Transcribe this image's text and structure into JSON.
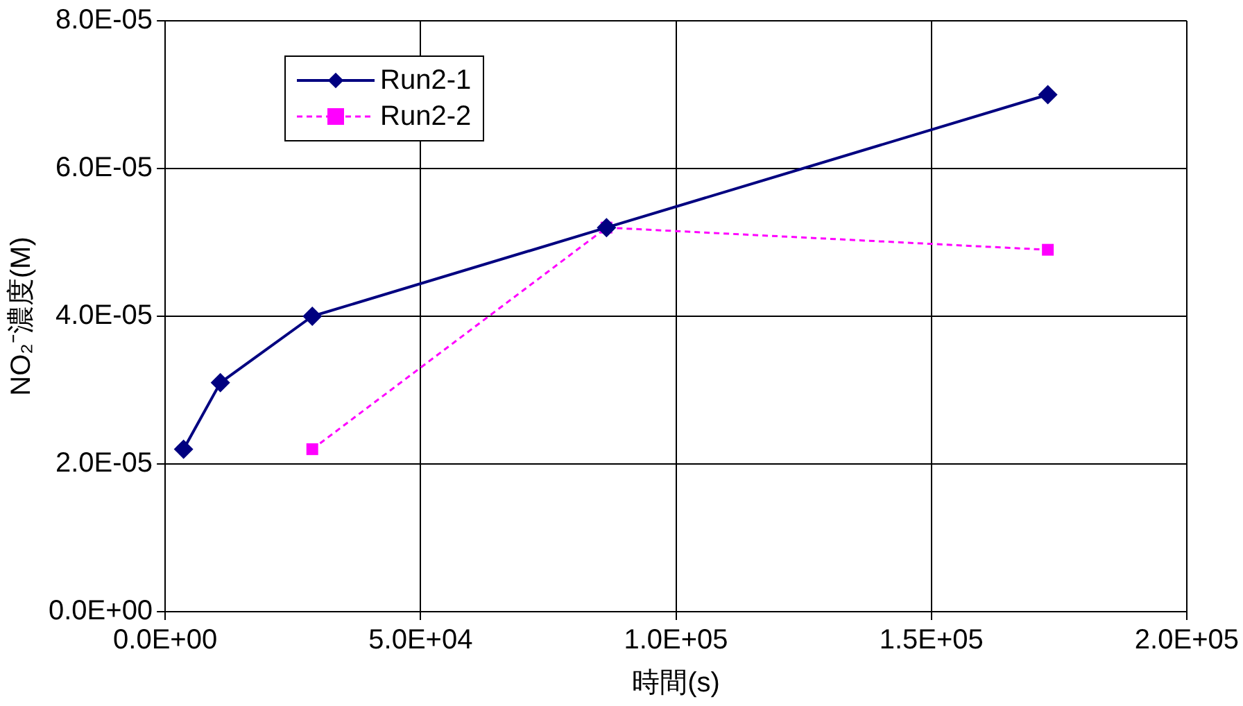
{
  "chart_data": {
    "type": "line",
    "xlabel": "時間(s)",
    "ylabel": "NO₂⁻濃度(M)",
    "xlim": [
      0,
      200000
    ],
    "xticks": [
      {
        "value": 0,
        "label": "0.0E+00"
      },
      {
        "value": 50000,
        "label": "5.0E+04"
      },
      {
        "value": 100000,
        "label": "1.0E+05"
      },
      {
        "value": 150000,
        "label": "1.5E+05"
      },
      {
        "value": 200000,
        "label": "2.0E+05"
      }
    ],
    "ylim": [
      0,
      8e-05
    ],
    "yticks": [
      {
        "value": 0,
        "label": "0.0E+00"
      },
      {
        "value": 2e-05,
        "label": "2.0E-05"
      },
      {
        "value": 4e-05,
        "label": "4.0E-05"
      },
      {
        "value": 6e-05,
        "label": "6.0E-05"
      },
      {
        "value": 8e-05,
        "label": "8.0E-05"
      }
    ],
    "grid": true,
    "legend": "top left",
    "series": [
      {
        "name": "Run2-1",
        "color": "#000080",
        "marker": "diamond",
        "line_style": "solid",
        "x": [
          3600,
          10800,
          28800,
          86400,
          172800
        ],
        "values": [
          2.2e-05,
          3.1e-05,
          4e-05,
          5.2e-05,
          7e-05
        ]
      },
      {
        "name": "Run2-2",
        "color": "#ff00ff",
        "marker": "square",
        "line_style": "dashed",
        "x": [
          28800,
          86400,
          172800
        ],
        "values": [
          2.2e-05,
          5.2e-05,
          4.9e-05
        ]
      }
    ]
  }
}
